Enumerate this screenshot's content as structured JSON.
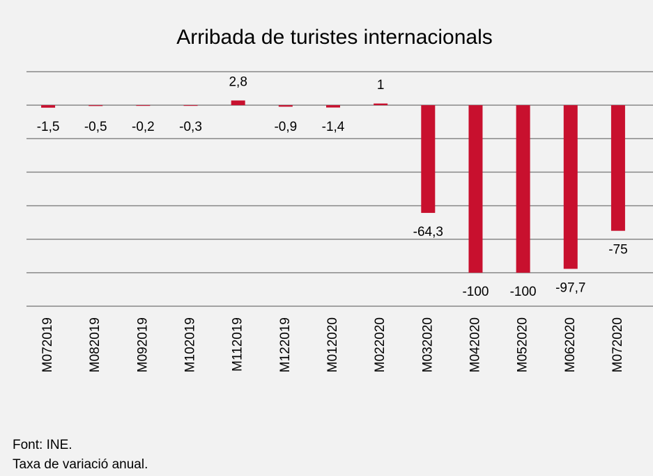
{
  "chart_data": {
    "type": "bar",
    "title": "Arribada de turistes internacionals",
    "categories": [
      "M072019",
      "M082019",
      "M092019",
      "M102019",
      "M112019",
      "M122019",
      "M012020",
      "M022020",
      "M032020",
      "M042020",
      "M052020",
      "M062020",
      "M072020"
    ],
    "values": [
      -1.5,
      -0.5,
      -0.2,
      -0.3,
      2.8,
      -0.9,
      -1.4,
      1,
      -64.3,
      -100,
      -100,
      -97.7,
      -75
    ],
    "value_labels": [
      "-1,5",
      "-0,5",
      "-0,2",
      "-0,3",
      "2,8",
      "-0,9",
      "-1,4",
      "1",
      "-64,3",
      "-100",
      "-100",
      "-97,7",
      "-75"
    ],
    "color": "#c8102e",
    "ylim": [
      -120,
      20
    ],
    "yticks": [
      -120,
      -100,
      -80,
      -60,
      -40,
      -20,
      0,
      20
    ],
    "grid": true,
    "notes": [
      "Font: INE.",
      "Taxa de variació anual."
    ]
  }
}
